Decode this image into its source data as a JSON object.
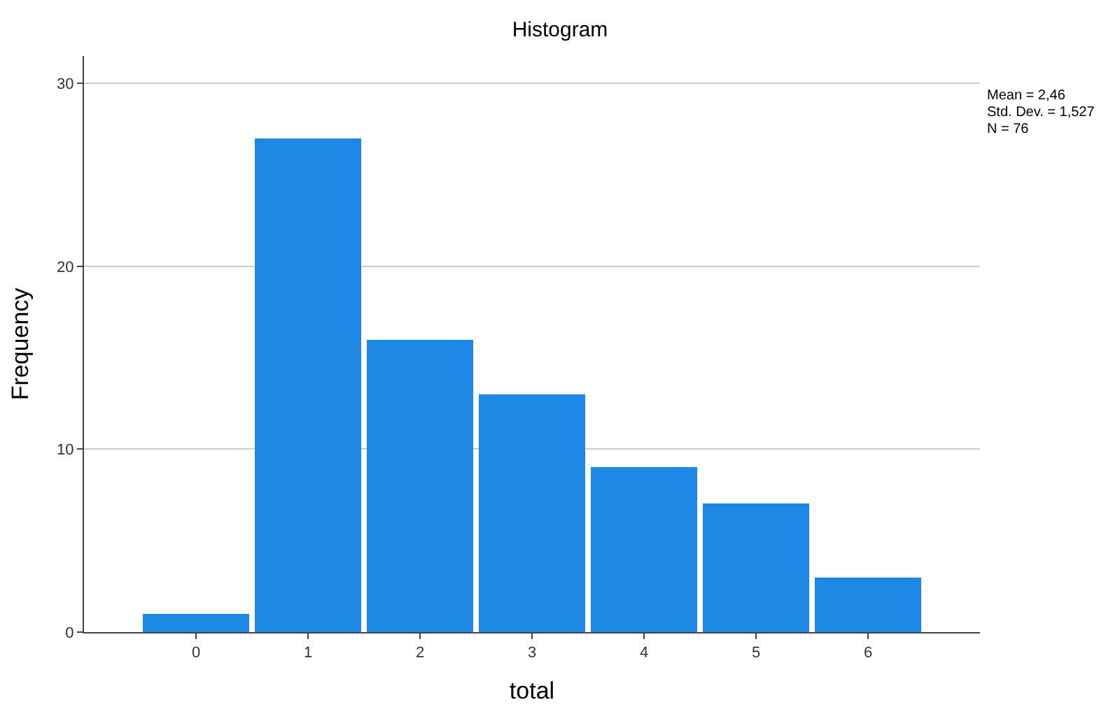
{
  "chart_data": {
    "type": "histogram",
    "title": "Histogram",
    "xlabel": "total",
    "ylabel": "Frequency",
    "bins": [
      -0.5,
      0.5,
      1.5,
      2.5,
      3.5,
      4.5,
      5.5,
      6.5
    ],
    "values": [
      1,
      27,
      16,
      13,
      9,
      7,
      3
    ],
    "color": "#1e88e5",
    "xlim": [
      -1,
      7
    ],
    "xticks": [
      0,
      1,
      2,
      3,
      4,
      5,
      6
    ],
    "ylim": [
      0,
      31.5
    ],
    "yticks": [
      0,
      10,
      20,
      30
    ],
    "grid": "y",
    "annotations": [
      "Mean = 2,46",
      "Std. Dev. = 1,527",
      "N = 76"
    ]
  }
}
